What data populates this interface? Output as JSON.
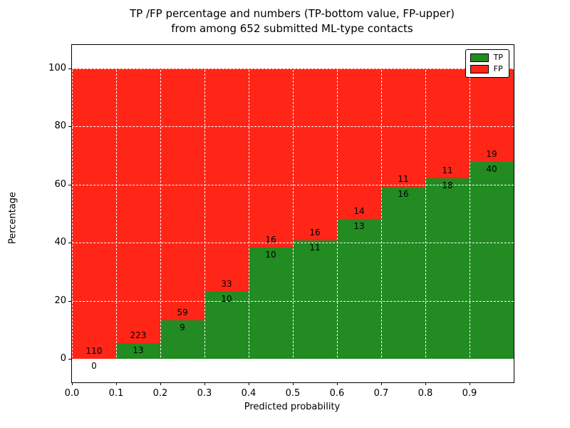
{
  "chart_data": {
    "type": "bar",
    "stacked": true,
    "title_line1": "TP /FP percentage and numbers (TP-bottom value, FP-upper)",
    "title_line2": "from among 652 submitted ML-type contacts",
    "xlabel": "Predicted probability",
    "ylabel": "Percentage",
    "total_contacts": 652,
    "bin_width": 0.1,
    "bin_starts": [
      0.0,
      0.1,
      0.2,
      0.3,
      0.4,
      0.5,
      0.6,
      0.7,
      0.8,
      0.9
    ],
    "x_tick_labels": [
      "0.0",
      "0.1",
      "0.2",
      "0.3",
      "0.4",
      "0.5",
      "0.6",
      "0.7",
      "0.8",
      "0.9"
    ],
    "x_tick_values": [
      0.0,
      0.1,
      0.2,
      0.3,
      0.4,
      0.5,
      0.6,
      0.7,
      0.8,
      0.9
    ],
    "xlim": [
      0.0,
      1.0
    ],
    "y_ticks": [
      0,
      20,
      40,
      60,
      80,
      100
    ],
    "ylim": [
      -8,
      108
    ],
    "grid": true,
    "grid_color": "#ffffff",
    "series": [
      {
        "name": "TP",
        "color": "#228b22",
        "counts": [
          0,
          13,
          9,
          10,
          10,
          11,
          13,
          16,
          18,
          40
        ]
      },
      {
        "name": "FP",
        "color": "#ff2618",
        "counts": [
          110,
          223,
          59,
          33,
          16,
          16,
          14,
          11,
          11,
          19
        ]
      }
    ],
    "legend_position": "upper right"
  }
}
